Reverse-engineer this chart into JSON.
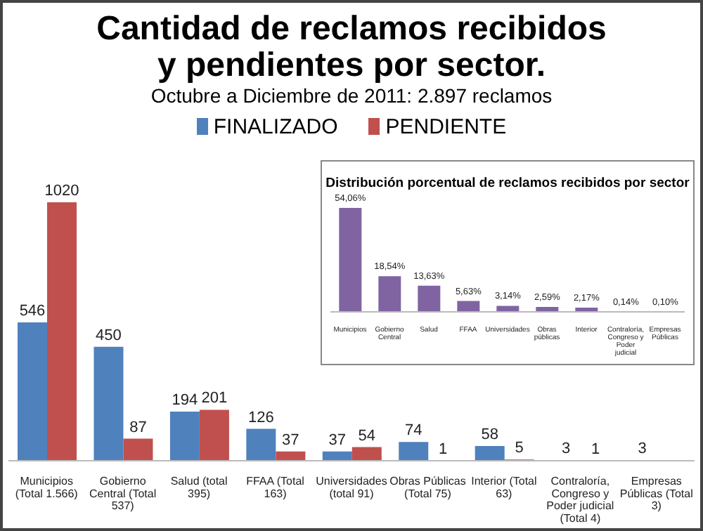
{
  "chart_data": [
    {
      "type": "bar",
      "title": "Cantidad de reclamos recibidos y pendientes por sector.",
      "subtitle": "Octubre a Diciembre de 2011: 2.897 reclamos",
      "categories": [
        "Municipios (Total 1.566)",
        "Gobierno Central (Total 537)",
        "Salud (total 395)",
        "FFAA (Total 163)",
        "Universidades (total 91)",
        "Obras Públicas (Total 75)",
        "Interior (Total 63)",
        "Contraloría, Congreso y Poder judicial (Total 4)",
        "Empresas Públicas (Total 3)"
      ],
      "series": [
        {
          "name": "FINALIZADO",
          "color": "#4f81bd",
          "values": [
            546,
            450,
            194,
            126,
            37,
            74,
            58,
            3,
            3
          ]
        },
        {
          "name": "PENDIENTE",
          "color": "#c0504d",
          "values": [
            1020,
            87,
            201,
            37,
            54,
            1,
            5,
            1,
            null
          ]
        }
      ],
      "data_labels": true,
      "legend": "top"
    },
    {
      "type": "bar",
      "title": "Distribución porcentual de reclamos recibidos por sector",
      "categories": [
        "Municipios",
        "Gobierno Central",
        "Salud",
        "FFAA",
        "Universidades",
        "Obras públicas",
        "Interior",
        "Contraloría, Congreso y Poder judicial",
        "Empresas Públicas"
      ],
      "values": [
        54.06,
        18.54,
        13.63,
        5.63,
        3.14,
        2.59,
        2.17,
        0.14,
        0.1
      ],
      "color": "#8064a2",
      "value_labels": [
        "54,06%",
        "18,54%",
        "13,63%",
        "5,63%",
        "3,14%",
        "2,59%",
        "2,17%",
        "0,14%",
        "0,10%"
      ]
    }
  ]
}
